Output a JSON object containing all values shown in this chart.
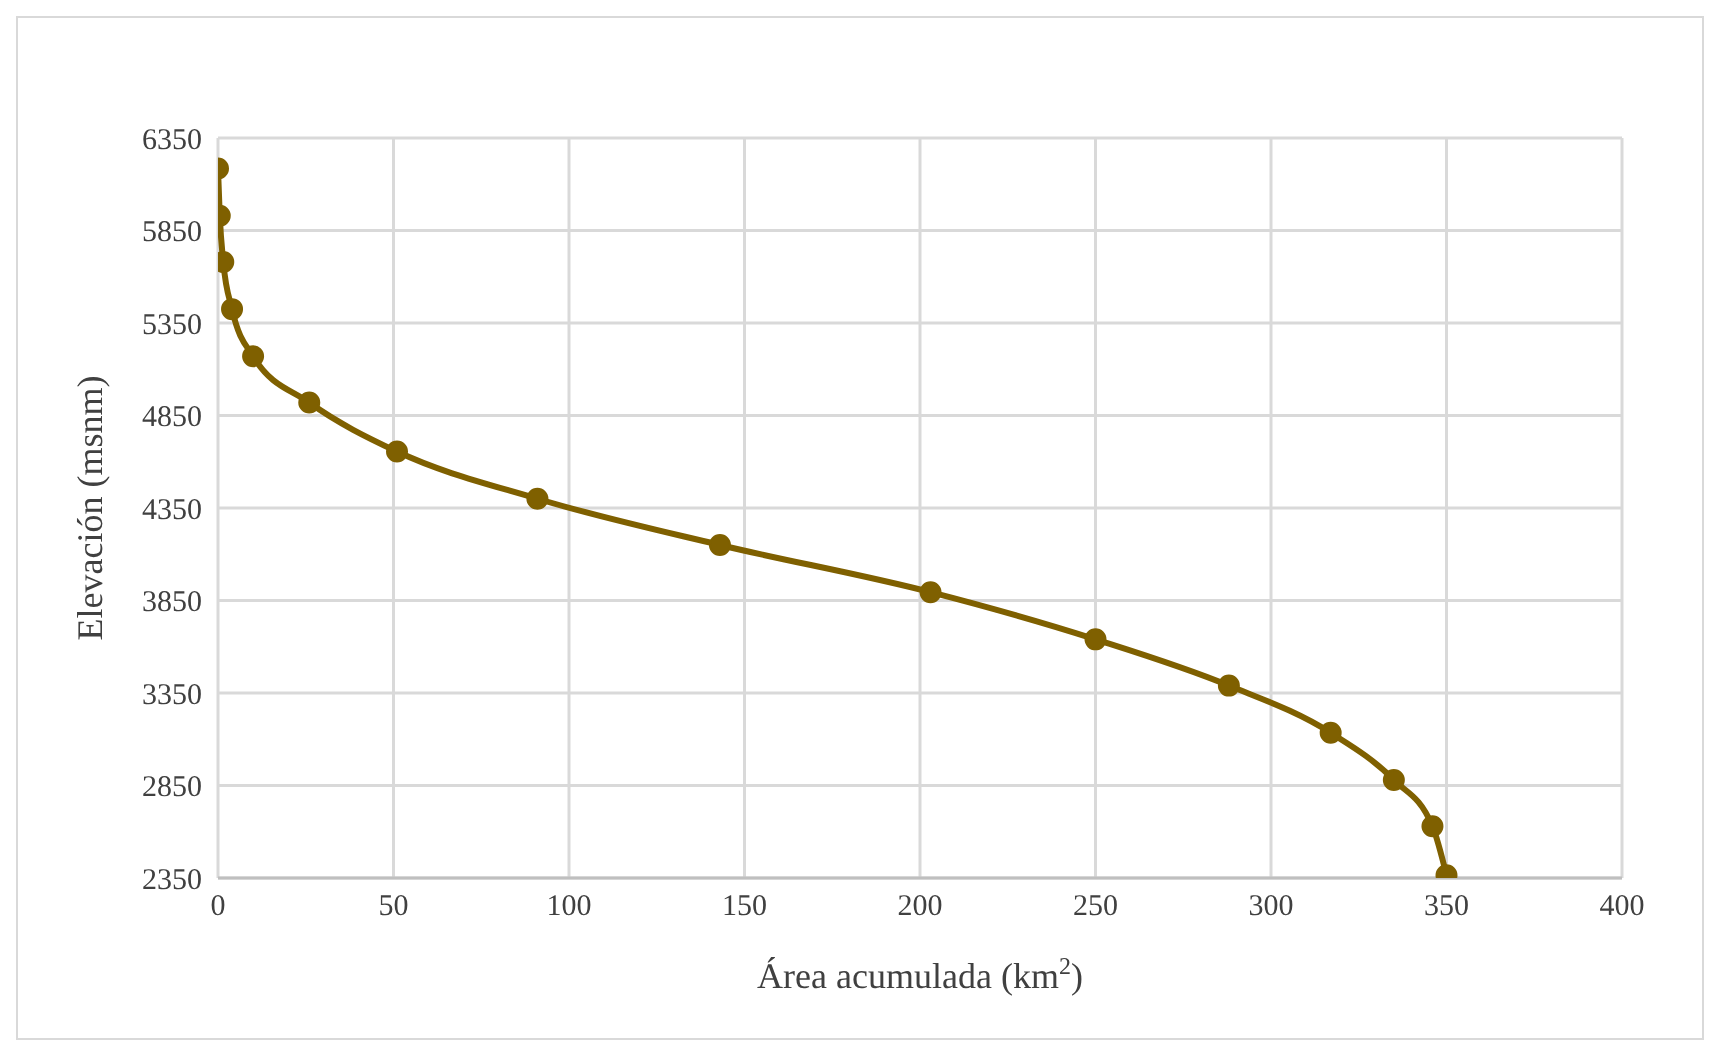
{
  "chart_data": {
    "type": "line",
    "xlabel": "Área acumulada (km$^{2}$)",
    "ylabel": "Elevación (msnm)",
    "x": [
      0,
      0.5,
      1.5,
      4,
      10,
      26,
      51,
      91,
      143,
      203,
      250,
      288,
      317,
      335,
      346,
      350
    ],
    "series": [
      {
        "color": "#7f6000",
        "values": [
          6185,
          5930,
          5680,
          5425,
          5170,
          4920,
          4655,
          4400,
          4150,
          3895,
          3640,
          3390,
          3135,
          2880,
          2630,
          2365
        ]
      }
    ],
    "xlim": [
      0,
      400
    ],
    "xticks": [
      0,
      50,
      100,
      150,
      200,
      250,
      300,
      350,
      400
    ],
    "ylim": [
      2350,
      6350
    ],
    "yticks": [
      2350,
      2850,
      3350,
      3850,
      4350,
      4850,
      5350,
      5850,
      6350
    ],
    "grid": true,
    "marker": "circle",
    "line_style": "solid",
    "legend": false
  }
}
